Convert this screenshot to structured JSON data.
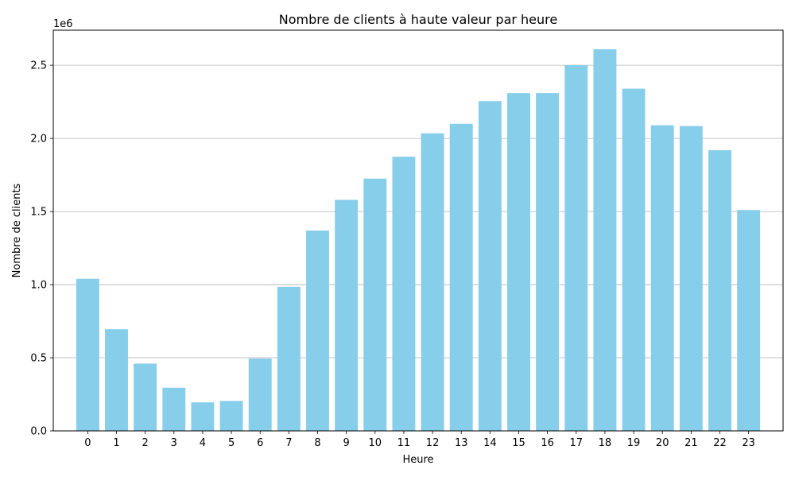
{
  "chart_data": {
    "type": "bar",
    "title": "Nombre de clients à haute valeur par heure",
    "xlabel": "Heure",
    "ylabel": "Nombre de clients",
    "y_offset_label": "1e6",
    "categories": [
      "0",
      "1",
      "2",
      "3",
      "4",
      "5",
      "6",
      "7",
      "8",
      "9",
      "10",
      "11",
      "12",
      "13",
      "14",
      "15",
      "16",
      "17",
      "18",
      "19",
      "20",
      "21",
      "22",
      "23"
    ],
    "values": [
      1040000,
      695000,
      460000,
      295000,
      195000,
      205000,
      495000,
      985000,
      1370000,
      1580000,
      1725000,
      1875000,
      2035000,
      2100000,
      2255000,
      2310000,
      2310000,
      2500000,
      2610000,
      2340000,
      2090000,
      2085000,
      1920000,
      1510000
    ],
    "ylim": [
      0,
      2740000
    ],
    "yticks": [
      0,
      500000,
      1000000,
      1500000,
      2000000,
      2500000
    ],
    "ytick_labels": [
      "0.0",
      "0.5",
      "1.0",
      "1.5",
      "2.0",
      "2.5"
    ],
    "grid": "y",
    "bar_color": "#87ceeb",
    "grid_color": "#b0b0b0"
  }
}
